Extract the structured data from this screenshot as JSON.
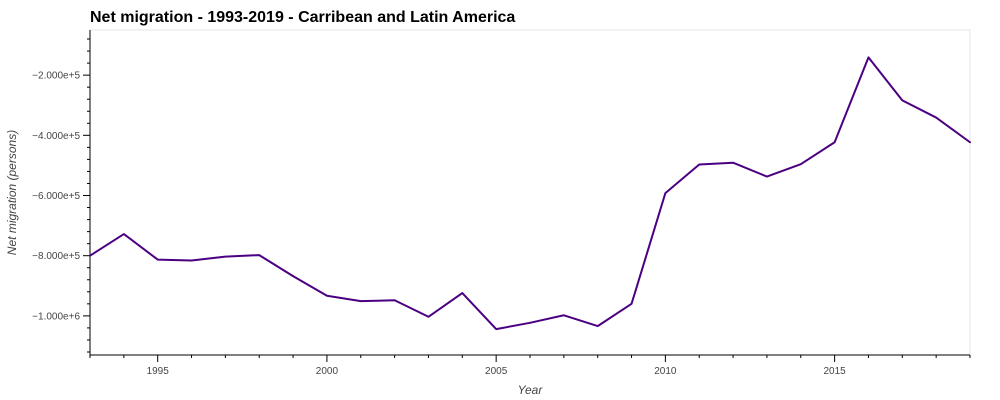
{
  "chart_data": {
    "type": "line",
    "title": "Net migration - 1993-2019 - Carribean and Latin America",
    "xlabel": "Year",
    "ylabel": "Net migration (persons)",
    "xlim": [
      1993,
      2019
    ],
    "ylim": [
      -1130000,
      -50000
    ],
    "x_ticks": [
      1995,
      2000,
      2005,
      2010,
      2015
    ],
    "y_ticks": [
      -1000000,
      -800000,
      -600000,
      -400000,
      -200000
    ],
    "x_tick_labels": [
      "1995",
      "2000",
      "2005",
      "2010",
      "2015"
    ],
    "y_tick_labels": [
      "−1.000e+6",
      "−8.000e+5",
      "−6.000e+5",
      "−4.000e+5",
      "−2.000e+5"
    ],
    "grid": false,
    "series": [
      {
        "color": "#4b0082",
        "x": [
          1993,
          1994,
          1995,
          1996,
          1997,
          1998,
          1999,
          2000,
          2001,
          2002,
          2003,
          2004,
          2005,
          2006,
          2007,
          2008,
          2009,
          2010,
          2011,
          2012,
          2013,
          2014,
          2015,
          2016,
          2017,
          2018,
          2019
        ],
        "y": [
          -800000,
          -728000,
          -813000,
          -816000,
          -803000,
          -798000,
          -868000,
          -933000,
          -951000,
          -948000,
          -1003000,
          -924000,
          -1044000,
          -1023000,
          -998000,
          -1034000,
          -960000,
          -592000,
          -497000,
          -491000,
          -537000,
          -496000,
          -423000,
          -141000,
          -284000,
          -341000,
          -423000
        ]
      }
    ]
  }
}
